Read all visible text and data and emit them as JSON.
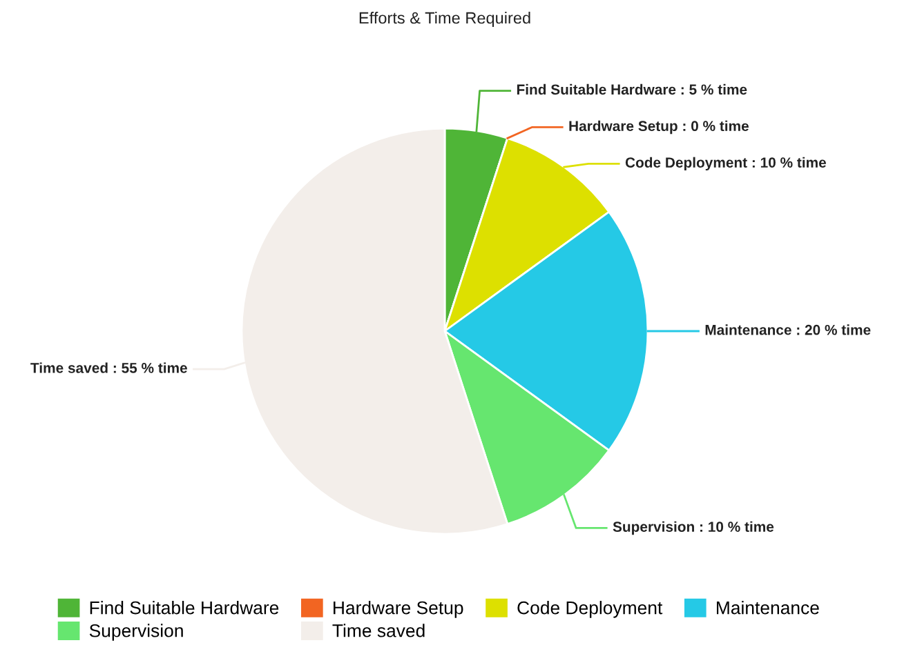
{
  "chart_data": {
    "type": "pie",
    "title": "Efforts & Time Required",
    "categories": [
      "Find Suitable Hardware",
      "Hardware Setup",
      "Code Deployment",
      "Maintenance",
      "Supervision",
      "Time saved"
    ],
    "values": [
      5,
      0,
      10,
      20,
      10,
      55
    ],
    "colors": [
      "#4fb537",
      "#f26522",
      "#dde000",
      "#25c9e6",
      "#66e66f",
      "#f3eeea"
    ],
    "value_labels": [
      "Find Suitable Hardware : 5 % time",
      "Hardware Setup : 0 % time",
      "Code Deployment : 10 % time",
      "Maintenance : 20 % time",
      "Supervision : 10 % time",
      "Time saved : 55 % time"
    ],
    "legend": "bottom"
  }
}
